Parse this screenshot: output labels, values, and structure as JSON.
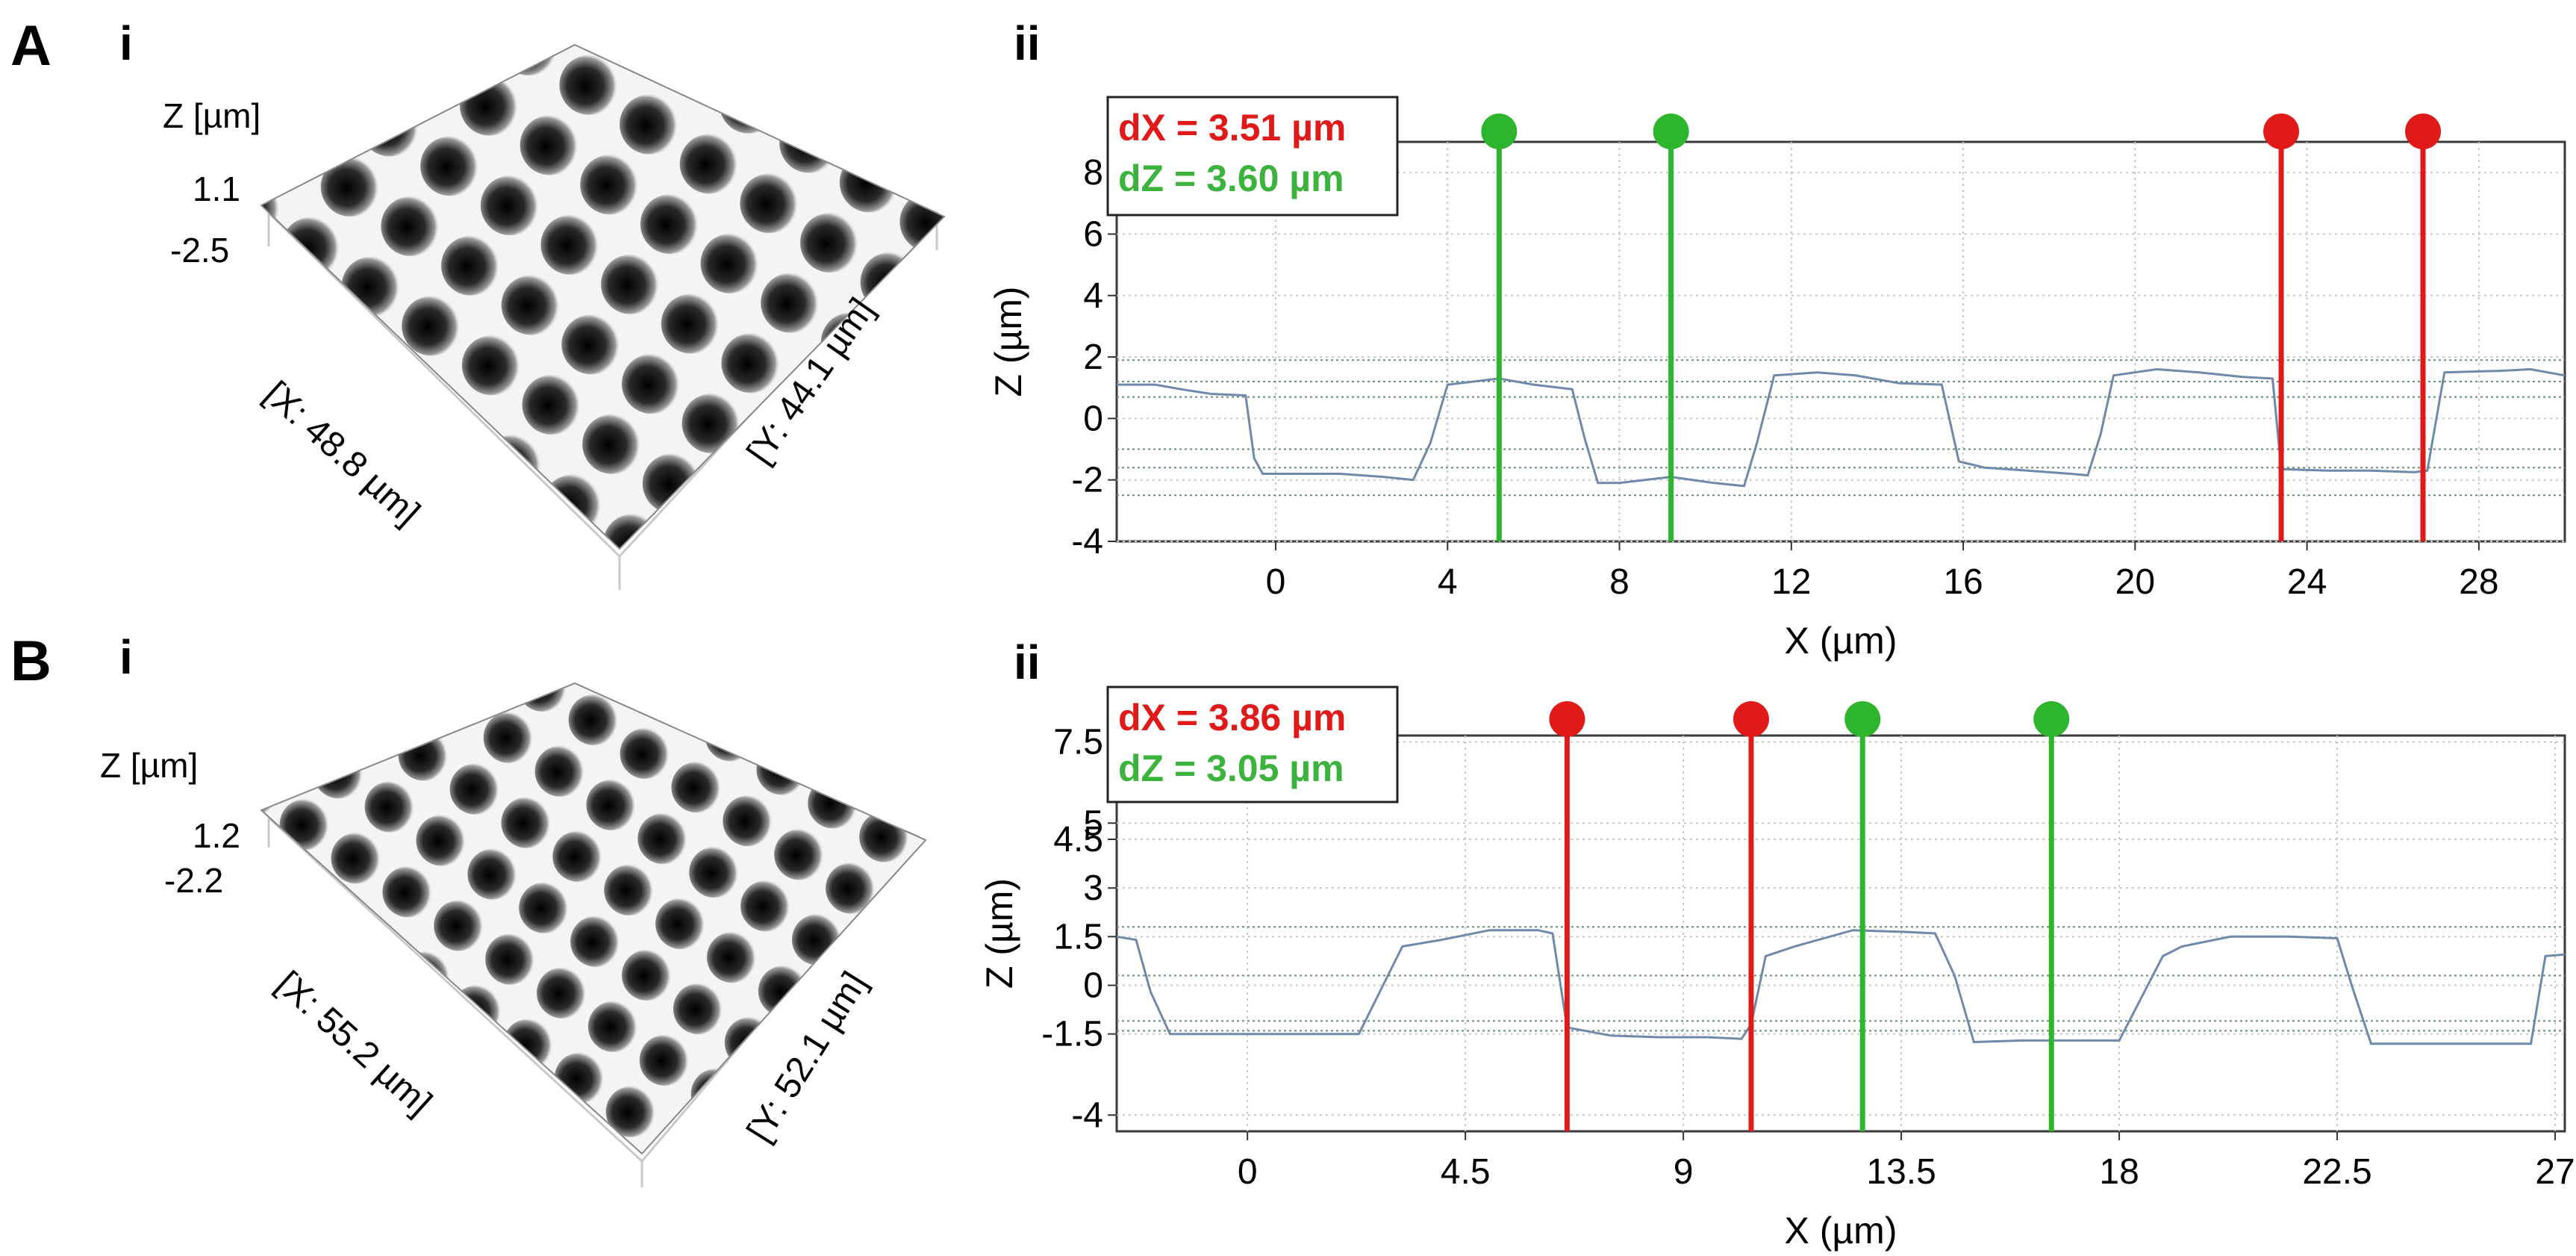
{
  "panels": [
    {
      "letter": "A",
      "surface": {
        "label": "i",
        "z_label": "Z [µm]",
        "z_max": "1.1",
        "z_min": "-2.5",
        "x_dim": "[X: 48.8 µm]",
        "y_dim": "[Y: 44.1 µm]"
      },
      "profile_label": "ii"
    },
    {
      "letter": "B",
      "surface": {
        "label": "i",
        "z_label": "Z [µm]",
        "z_max": "1.2",
        "z_min": "-2.2",
        "x_dim": "[X: 55.2 µm]",
        "y_dim": "[Y: 52.1 µm]"
      },
      "profile_label": "ii"
    }
  ],
  "chart_data": [
    {
      "type": "line",
      "panel": "A ii",
      "xlabel": "X (µm)",
      "ylabel": "Z (µm)",
      "xlim": [
        -3.7,
        30
      ],
      "ylim": [
        -4,
        9
      ],
      "xticks": [
        0,
        4,
        8,
        12,
        16,
        20,
        24,
        28
      ],
      "xtick_labels": [
        "0",
        "4",
        "8",
        "12",
        "16",
        "20",
        "24",
        "28"
      ],
      "yticks": [
        -4,
        -2,
        0,
        2,
        4,
        6,
        8
      ],
      "ytick_labels": [
        "-4",
        "-2",
        "0",
        "2",
        "4",
        "6",
        "8"
      ],
      "legend": {
        "dX": "dX = 3.51 µm",
        "dZ": "dZ = 3.60 µm"
      },
      "cursors": [
        {
          "x": 5.2,
          "color": "#2db52d"
        },
        {
          "x": 9.2,
          "color": "#2db52d"
        },
        {
          "x": 23.4,
          "color": "#e01919"
        },
        {
          "x": 26.7,
          "color": "#e01919"
        }
      ],
      "ref_lines": [
        1.9,
        1.2,
        0.7,
        -1.0,
        -1.6,
        -2.5
      ],
      "series": [
        {
          "name": "profile",
          "x": [
            -3.7,
            -2.8,
            -2.2,
            -1.5,
            -0.7,
            -0.5,
            -0.3,
            0.5,
            1.5,
            2.5,
            3.2,
            3.6,
            4.0,
            5.2,
            6.0,
            6.9,
            7.2,
            7.5,
            8.0,
            9.2,
            10.2,
            10.9,
            11.2,
            11.6,
            12.6,
            13.5,
            14.5,
            15.5,
            15.9,
            16.5,
            17.5,
            18.5,
            18.9,
            19.2,
            19.5,
            20.5,
            21.5,
            22.5,
            23.2,
            23.4,
            24.5,
            25.5,
            26.5,
            26.8,
            27.2,
            28.5,
            29.2,
            30.0
          ],
          "y": [
            1.1,
            1.1,
            0.95,
            0.8,
            0.75,
            -1.3,
            -1.8,
            -1.8,
            -1.8,
            -1.9,
            -2.0,
            -0.8,
            1.1,
            1.3,
            1.1,
            0.95,
            -0.7,
            -2.1,
            -2.1,
            -1.9,
            -2.1,
            -2.2,
            -0.8,
            1.4,
            1.5,
            1.4,
            1.15,
            1.1,
            -1.4,
            -1.6,
            -1.7,
            -1.8,
            -1.85,
            -0.5,
            1.4,
            1.6,
            1.5,
            1.35,
            1.3,
            -1.65,
            -1.7,
            -1.7,
            -1.75,
            -1.7,
            1.5,
            1.55,
            1.6,
            1.4
          ]
        }
      ]
    },
    {
      "type": "line",
      "panel": "B ii",
      "xlabel": "X (µm)",
      "ylabel": "Z (µm)",
      "xlim": [
        -2.7,
        27.2
      ],
      "ylim": [
        -4.5,
        7.7
      ],
      "xticks": [
        0,
        4.5,
        9,
        13.5,
        18,
        22.5,
        27
      ],
      "xtick_labels": [
        "0",
        "4.5",
        "9",
        "13.5",
        "18",
        "22.5",
        "27"
      ],
      "yticks": [
        -4,
        -1.5,
        0,
        1.5,
        3,
        4.5,
        5,
        7.5
      ],
      "ytick_labels": [
        "-4",
        "-1.5",
        "0",
        "1.5",
        "3",
        "4.5",
        "5",
        "7.5"
      ],
      "legend": {
        "dX": "dX = 3.86 µm",
        "dZ": "dZ = 3.05 µm"
      },
      "cursors": [
        {
          "x": 6.6,
          "color": "#e01919"
        },
        {
          "x": 10.4,
          "color": "#e01919"
        },
        {
          "x": 12.7,
          "color": "#2db52d"
        },
        {
          "x": 16.6,
          "color": "#2db52d"
        }
      ],
      "ref_lines": [
        1.8,
        0.3,
        -1.1,
        -1.4
      ],
      "series": [
        {
          "name": "profile",
          "x": [
            -2.7,
            -2.3,
            -2.0,
            -1.6,
            -0.5,
            1.0,
            2.3,
            2.9,
            3.2,
            4.0,
            5.0,
            6.0,
            6.3,
            6.6,
            7.5,
            8.5,
            9.5,
            10.2,
            10.4,
            10.7,
            11.3,
            12.5,
            13.5,
            14.2,
            14.6,
            15.0,
            16.0,
            17.5,
            18.0,
            18.9,
            19.3,
            20.3,
            21.5,
            22.5,
            22.8,
            23.2,
            24.5,
            26.0,
            26.5,
            26.8,
            27.2
          ],
          "y": [
            1.5,
            1.4,
            -0.2,
            -1.5,
            -1.5,
            -1.5,
            -1.5,
            0.3,
            1.2,
            1.4,
            1.7,
            1.7,
            1.6,
            -1.3,
            -1.55,
            -1.6,
            -1.6,
            -1.65,
            -1.2,
            0.9,
            1.2,
            1.7,
            1.65,
            1.6,
            0.3,
            -1.75,
            -1.7,
            -1.7,
            -1.7,
            0.9,
            1.2,
            1.5,
            1.5,
            1.45,
            0.0,
            -1.8,
            -1.8,
            -1.8,
            -1.8,
            0.9,
            0.95
          ]
        }
      ]
    }
  ]
}
